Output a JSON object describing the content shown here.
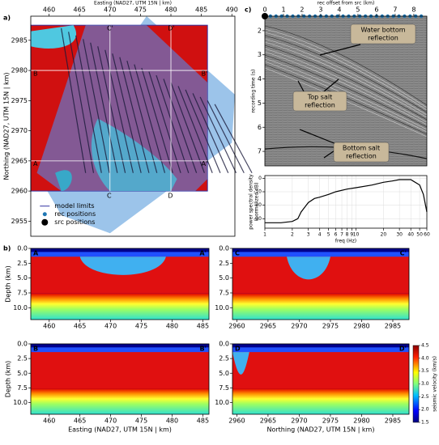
{
  "chart_data": [
    {
      "type": "map",
      "label": "a)",
      "xlabel": "Easting (NAD27, UTM 15N | km)",
      "ylabel": "Northing (NAD27, UTM 15N | km)",
      "xlim": [
        457,
        490.5
      ],
      "xticks": [
        460,
        465,
        470,
        475,
        480,
        485,
        490
      ],
      "ylim": [
        2952.5,
        2989
      ],
      "yticks": [
        2955,
        2960,
        2965,
        2970,
        2975,
        2980,
        2985
      ],
      "xaxis": "top",
      "legend": [
        "model limits",
        "rec positions",
        "src positions"
      ],
      "legend_corner": "lower left",
      "markers": [
        "A",
        "A'",
        "B",
        "B'",
        "C",
        "C'",
        "D",
        "D'"
      ]
    },
    {
      "type": "seismic",
      "label": "c)",
      "xlabel": "rec offset from src (km)",
      "ylabel": "recording time (s)",
      "xlim": [
        0,
        8.7
      ],
      "xticks": [
        0,
        1,
        2,
        3,
        4,
        5,
        6,
        7,
        8
      ],
      "ylim": [
        7.6,
        1.4
      ],
      "yticks": [
        2,
        3,
        4,
        5,
        6,
        7
      ],
      "xaxis": "top",
      "annotations": [
        [
          "Water bottom",
          "reflection"
        ],
        [
          "Top salt",
          "reflection"
        ],
        [
          "Bottom salt",
          "reflection"
        ]
      ]
    },
    {
      "type": "line",
      "xlabel": "freq (Hz)",
      "ylabel": [
        "power spectral density",
        "(normalized dB)"
      ],
      "xlog": true,
      "xlim": [
        1,
        60
      ],
      "xticks": [
        1,
        2,
        3,
        4,
        5,
        6,
        7,
        8,
        9,
        10,
        20,
        30,
        40,
        50,
        60
      ],
      "ylim": [
        -37,
        2
      ],
      "yticks": [
        0,
        -10,
        -20,
        -30
      ],
      "grid": true,
      "color": "#000000",
      "x": [
        1,
        1.5,
        2,
        2.3,
        2.5,
        3,
        3.5,
        4,
        5,
        6,
        8,
        10,
        15,
        20,
        25,
        30,
        40,
        50,
        55,
        60
      ],
      "values": [
        -33,
        -33,
        -32,
        -30,
        -25,
        -18,
        -15,
        -14,
        -12,
        -10,
        -8,
        -7,
        -5,
        -3,
        -2,
        -1,
        -1,
        -5,
        -12,
        -25
      ]
    },
    {
      "type": "section",
      "label": "b)",
      "ylabel": "Depth (km)",
      "corners": [
        "A",
        "A'"
      ],
      "xlim": [
        457,
        486
      ],
      "xticks": [
        460,
        465,
        470,
        475,
        480,
        485
      ],
      "ylim": [
        12,
        0
      ],
      "yticks": [
        {
          "value": 0,
          "label": "0.0"
        },
        2.5,
        {
          "value": 5,
          "label": "5.0"
        },
        7.5,
        {
          "value": 10,
          "label": "10.0"
        }
      ]
    },
    {
      "type": "section",
      "corners": [
        "C",
        "C'"
      ],
      "xlim": [
        2959.3,
        2987.6
      ],
      "xticks": [
        2960,
        2965,
        2970,
        2975,
        2980,
        2985
      ],
      "ylim": [
        12,
        0
      ],
      "yticks": [
        {
          "value": 0,
          "label": "0.0"
        },
        2.5,
        {
          "value": 5,
          "label": "5.0"
        },
        7.5,
        {
          "value": 10,
          "label": "10.0"
        }
      ]
    },
    {
      "type": "section",
      "ylabel": "Depth (km)",
      "xlabel": "Easting (NAD27, UTM 15N | km)",
      "corners": [
        "B",
        "B'"
      ],
      "xlim": [
        457,
        486
      ],
      "xticks": [
        460,
        465,
        470,
        475,
        480,
        485
      ],
      "ylim": [
        12,
        0
      ],
      "yticks": [
        {
          "value": 0,
          "label": "0.0"
        },
        2.5,
        {
          "value": 5,
          "label": "5.0"
        },
        7.5,
        {
          "value": 10,
          "label": "10.0"
        }
      ]
    },
    {
      "type": "section",
      "xlabel": "Northing (NAD27, UTM 15N | km)",
      "corners": [
        "D",
        "D'"
      ],
      "xlim": [
        2959.3,
        2987.6
      ],
      "xticks": [
        2960,
        2965,
        2970,
        2975,
        2980,
        2985
      ],
      "ylim": [
        12,
        0
      ],
      "yticks": [
        {
          "value": 0,
          "label": "0.0"
        },
        2.5,
        {
          "value": 5,
          "label": "5.0"
        },
        7.5,
        {
          "value": 10,
          "label": "10.0"
        }
      ]
    },
    {
      "type": "colorbar",
      "ylabel": "seismic velocity (km/s)",
      "ylim": [
        1.5,
        4.5
      ],
      "yticks": [
        1.5,
        {
          "value": 2,
          "label": "2.0"
        },
        2.5,
        {
          "value": 3,
          "label": "3.0"
        },
        3.5,
        {
          "value": 4,
          "label": "4.0"
        },
        4.5
      ]
    }
  ]
}
